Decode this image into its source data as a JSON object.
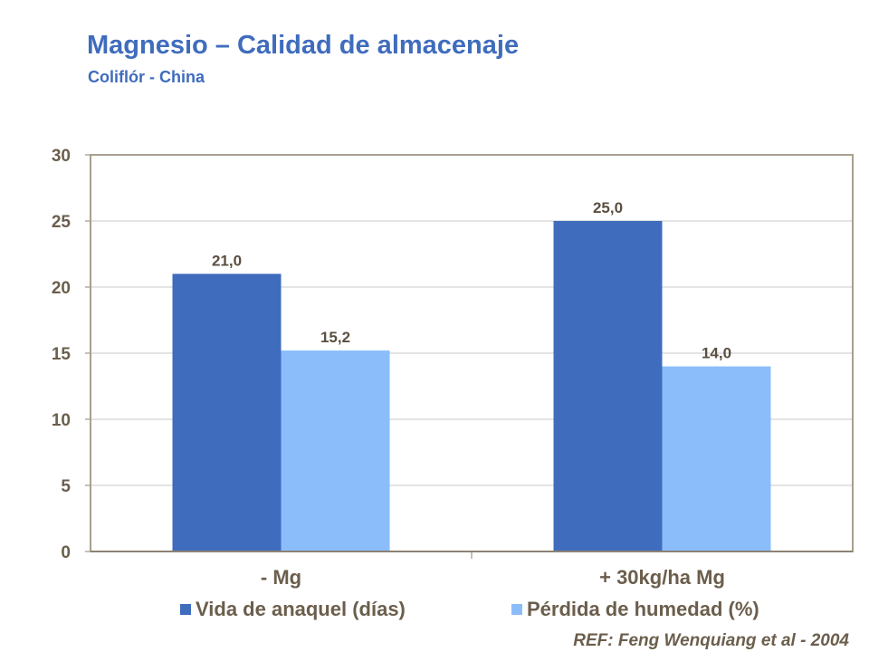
{
  "header": {
    "title": "Magnesio – Calidad de almacenaje",
    "subtitle": "Coliflór - China"
  },
  "chart_data": {
    "type": "bar",
    "title": "",
    "categories": [
      "- Mg",
      "+ 30kg/ha Mg"
    ],
    "series": [
      {
        "name": "Vida de anaquel (días)",
        "values": [
          21.0,
          25.0
        ],
        "color": "#3f6cbd",
        "labels": [
          "21,0",
          "25,0"
        ]
      },
      {
        "name": "Pérdida de humedad (%)",
        "values": [
          15.2,
          14.0
        ],
        "color": "#8bbdfb",
        "labels": [
          "15,2",
          "14,0"
        ]
      }
    ],
    "ylim": [
      0,
      30
    ],
    "yticks": [
      "0",
      "5",
      "10",
      "15",
      "20",
      "25",
      "30"
    ],
    "grid": true,
    "legend": "bottom"
  },
  "reference": "REF: Feng Wenquiang et al - 2004"
}
